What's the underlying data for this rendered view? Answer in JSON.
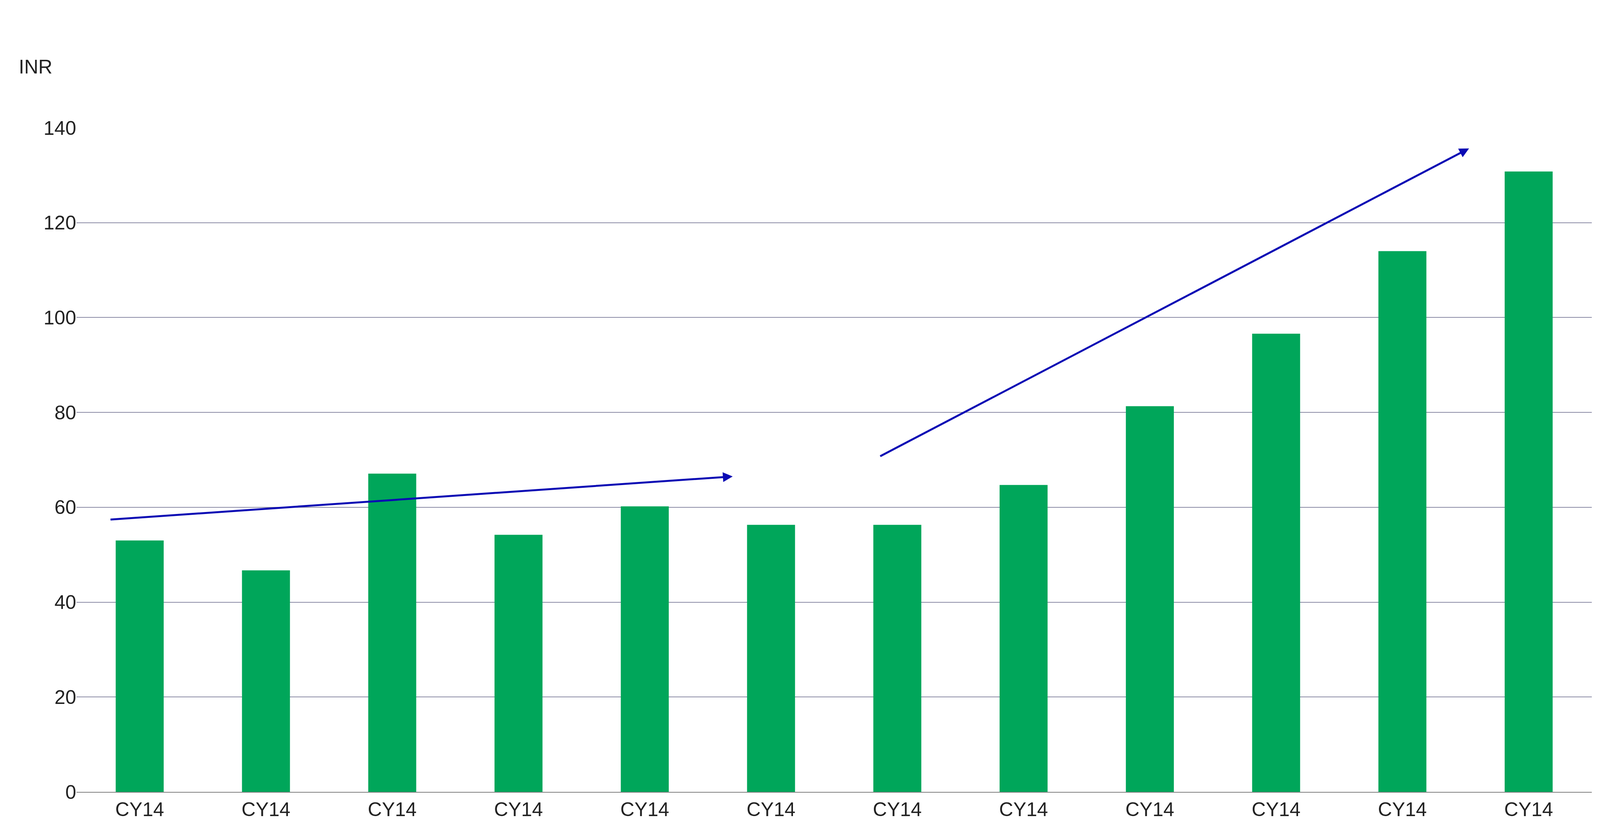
{
  "chart_data": {
    "type": "bar",
    "y_label": "INR",
    "categories": [
      "CY14",
      "CY14",
      "CY14",
      "CY14",
      "CY14",
      "CY14",
      "CY14",
      "CY14",
      "CY14",
      "CY14",
      "CY14",
      "CY14"
    ],
    "values": [
      53,
      46.7,
      67.1,
      54.2,
      60.2,
      56.3,
      56.3,
      64.7,
      81.3,
      96.6,
      114,
      130.8
    ],
    "color": "#00a65a",
    "ylim": [
      0,
      140
    ],
    "yticks": [
      0,
      20,
      40,
      60,
      80,
      100,
      120,
      140
    ],
    "grid": true
  }
}
